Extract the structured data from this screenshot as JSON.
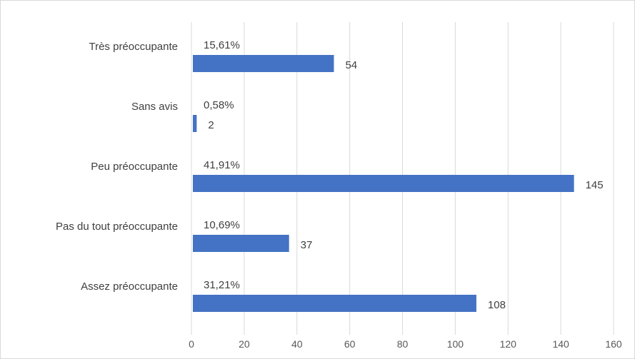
{
  "chart_data": {
    "type": "bar",
    "orientation": "horizontal",
    "title": "",
    "xlabel": "",
    "ylabel": "",
    "categories": [
      "Très préoccupante",
      "Sans avis",
      "Peu préoccupante",
      "Pas du tout préoccupante",
      "Assez préoccupante"
    ],
    "values": [
      54,
      2,
      145,
      37,
      108
    ],
    "percent_labels": [
      "15,61%",
      "0,58%",
      "41,91%",
      "10,69%",
      "31,21%"
    ],
    "xlim": [
      0,
      160
    ],
    "x_ticks": [
      0,
      20,
      40,
      60,
      80,
      100,
      120,
      140,
      160
    ],
    "grid": "vertical",
    "legend": "none",
    "bar_color": "#4472c4"
  }
}
